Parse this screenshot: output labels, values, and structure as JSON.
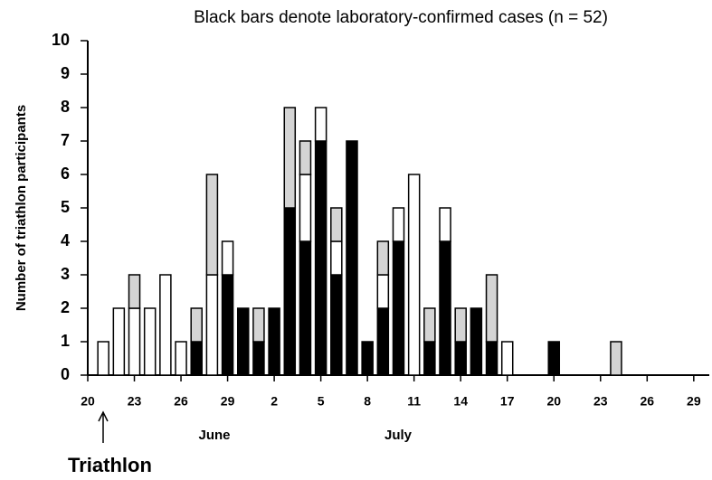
{
  "chart_data": {
    "type": "bar",
    "title": "Black bars denote laboratory-confirmed cases (n = 52)",
    "y_label": "Number of triathlon participants",
    "annotations": [
      "June",
      "July",
      "Triathlon"
    ],
    "x": [
      1,
      2,
      3,
      4,
      5,
      6,
      7,
      8,
      9,
      10,
      11,
      12,
      13,
      14,
      15,
      16,
      17,
      18,
      19,
      20,
      21,
      22,
      23,
      24,
      25,
      26,
      27,
      28,
      29,
      30,
      31,
      32,
      33,
      34
    ],
    "series": [
      {
        "color": "#000000",
        "values": [
          0,
          0,
          0,
          0,
          0,
          0,
          1,
          0,
          3,
          2,
          1,
          2,
          5,
          4,
          7,
          3,
          7,
          1,
          2,
          4,
          0,
          1,
          4,
          1,
          2,
          1,
          0,
          0,
          0,
          1,
          0,
          0,
          0,
          0
        ]
      },
      {
        "color": "#ffffff",
        "values": [
          1,
          2,
          2,
          2,
          3,
          1,
          0,
          3,
          1,
          0,
          0,
          0,
          0,
          2,
          1,
          1,
          0,
          0,
          1,
          1,
          6,
          0,
          1,
          0,
          0,
          0,
          1,
          0,
          0,
          0,
          0,
          0,
          0,
          0
        ]
      },
      {
        "color": "#d4d4d4",
        "values": [
          0,
          0,
          1,
          0,
          0,
          0,
          1,
          3,
          0,
          0,
          1,
          0,
          3,
          1,
          0,
          1,
          0,
          0,
          1,
          0,
          0,
          1,
          0,
          1,
          0,
          2,
          0,
          0,
          0,
          0,
          0,
          0,
          0,
          1
        ]
      }
    ],
    "stacked": true,
    "xlim": [
      0,
      40
    ],
    "xticks": [
      {
        "value": 0,
        "label": "20"
      },
      {
        "value": 3,
        "label": "23"
      },
      {
        "value": 6,
        "label": "26"
      },
      {
        "value": 9,
        "label": "29"
      },
      {
        "value": 12,
        "label": "2"
      },
      {
        "value": 15,
        "label": "5"
      },
      {
        "value": 18,
        "label": "8"
      },
      {
        "value": 21,
        "label": "11"
      },
      {
        "value": 24,
        "label": "14"
      },
      {
        "value": 27,
        "label": "17"
      },
      {
        "value": 30,
        "label": "20"
      },
      {
        "value": 33,
        "label": "23"
      },
      {
        "value": 36,
        "label": "26"
      },
      {
        "value": 39,
        "label": "29"
      }
    ],
    "ylim": [
      0,
      10
    ],
    "yticks": [
      0,
      1,
      2,
      3,
      4,
      5,
      6,
      7,
      8,
      9,
      10
    ]
  }
}
